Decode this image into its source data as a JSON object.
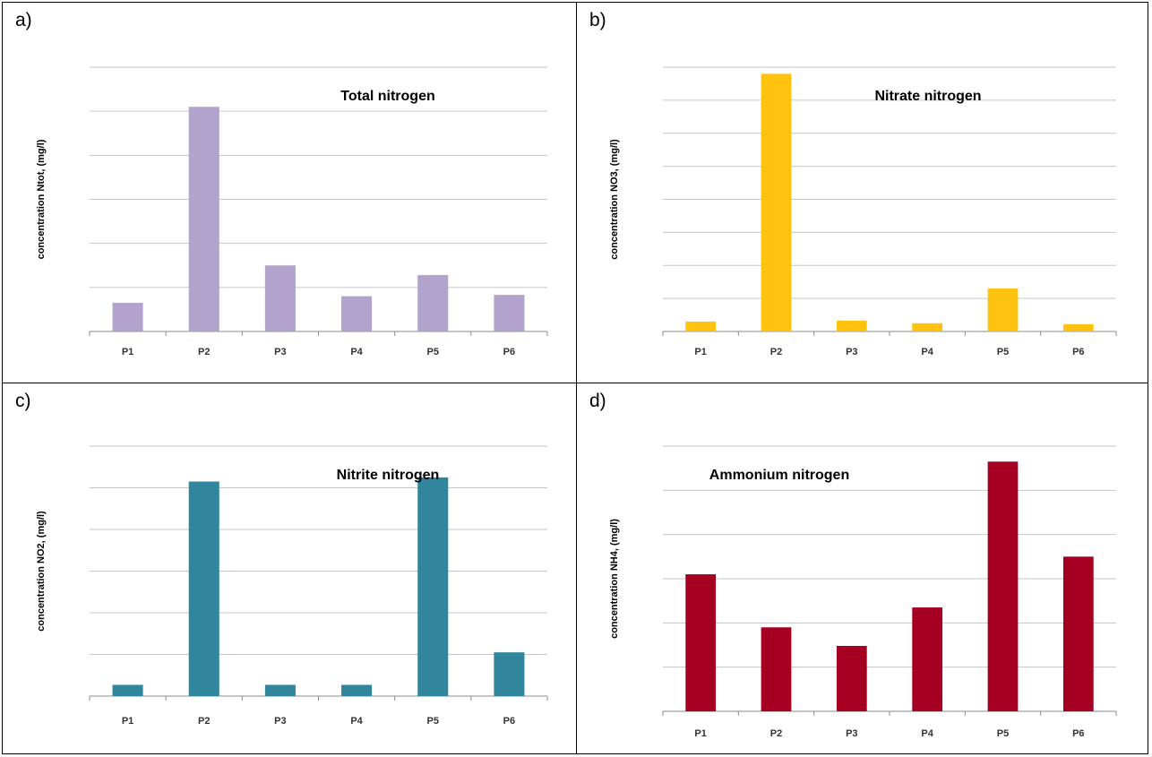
{
  "panels": [
    {
      "letter": "a)",
      "chart_data": {
        "type": "bar",
        "title": "Total nitrogen",
        "ylabel": "concentration Ntot,  (mg/l)",
        "categories": [
          "P1",
          "P2",
          "P3",
          "P4",
          "P5",
          "P6"
        ],
        "values": [
          0.65,
          5.1,
          1.5,
          0.8,
          1.28,
          0.83
        ],
        "ylim": [
          0,
          6
        ],
        "yticks": 6,
        "grid": true,
        "color": "#b1a3cb",
        "title_pos": "top-right"
      }
    },
    {
      "letter": "b)",
      "chart_data": {
        "type": "bar",
        "title": "Nitrate nitrogen",
        "ylabel": "concentration NO3,  (mg/l)",
        "categories": [
          "P1",
          "P2",
          "P3",
          "P4",
          "P5",
          "P6"
        ],
        "values": [
          0.3,
          7.8,
          0.33,
          0.25,
          1.3,
          0.22
        ],
        "ylim": [
          0,
          8
        ],
        "yticks": 8,
        "grid": true,
        "color": "#ffc20e",
        "title_pos": "top-right"
      }
    },
    {
      "letter": "c)",
      "chart_data": {
        "type": "bar",
        "title": "Nitrite nitrogen",
        "ylabel": "concentration NO2,  (mg/l)",
        "categories": [
          "P1",
          "P2",
          "P3",
          "P4",
          "P5",
          "P6"
        ],
        "values": [
          0.27,
          5.15,
          0.27,
          0.27,
          5.25,
          1.05
        ],
        "ylim": [
          0,
          6
        ],
        "yticks": 6,
        "grid": true,
        "color": "#31859c",
        "title_pos": "top-right"
      }
    },
    {
      "letter": "d)",
      "chart_data": {
        "type": "bar",
        "title": "Ammonium nitrogen",
        "ylabel": "concentration NH4,  (mg/l)",
        "categories": [
          "P1",
          "P2",
          "P3",
          "P4",
          "P5",
          "P6"
        ],
        "values": [
          3.1,
          1.9,
          1.48,
          2.35,
          5.65,
          3.5
        ],
        "ylim": [
          0,
          6
        ],
        "yticks": 6,
        "grid": true,
        "color": "#a50021",
        "title_pos": "top-left"
      }
    }
  ]
}
